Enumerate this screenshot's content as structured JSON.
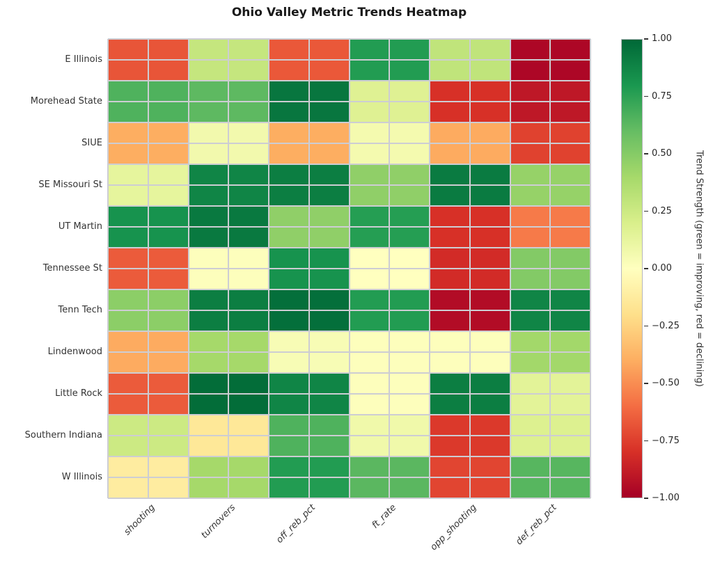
{
  "title": "Ohio Valley Metric Trends Heatmap",
  "chart_data": {
    "type": "heatmap",
    "title": "Ohio Valley Metric Trends Heatmap",
    "rows": [
      "E Illinois",
      "Morehead State",
      "SIUE",
      "SE Missouri St",
      "UT Martin",
      "Tennessee St",
      "Tenn Tech",
      "Lindenwood",
      "Little Rock",
      "Southern Indiana",
      "W Illinois"
    ],
    "columns": [
      "shooting",
      "turnovers",
      "off_reb_pct",
      "ft_rate",
      "opp_shooting",
      "def_reb_pct"
    ],
    "values": [
      [
        -0.68,
        0.28,
        -0.67,
        0.78,
        0.3,
        -0.97
      ],
      [
        0.66,
        0.62,
        0.94,
        0.17,
        -0.8,
        -0.9
      ],
      [
        -0.4,
        0.07,
        -0.4,
        0.06,
        -0.41,
        -0.74
      ],
      [
        0.13,
        0.88,
        0.91,
        0.47,
        0.92,
        0.45
      ],
      [
        0.82,
        0.93,
        0.47,
        0.77,
        -0.8,
        -0.56
      ],
      [
        -0.66,
        0.01,
        0.82,
        0.0,
        -0.82,
        0.51
      ],
      [
        0.48,
        0.91,
        0.97,
        0.78,
        -0.95,
        0.88
      ],
      [
        -0.41,
        0.4,
        0.04,
        0.01,
        0.01,
        0.41
      ],
      [
        -0.66,
        0.98,
        0.88,
        0.01,
        0.91,
        0.15
      ],
      [
        0.25,
        -0.15,
        0.66,
        0.08,
        -0.77,
        0.18
      ],
      [
        -0.12,
        0.4,
        0.78,
        0.63,
        -0.73,
        0.64
      ]
    ],
    "vmin": -1,
    "vmax": 1,
    "grid": true,
    "legend_position": "right",
    "colormap_name": "RdYlGn",
    "colormap_stops": [
      "#a50026",
      "#d73027",
      "#f46d43",
      "#fdae61",
      "#fee08b",
      "#ffffbf",
      "#d9ef8b",
      "#a6d96a",
      "#66bd63",
      "#1a9850",
      "#006837"
    ],
    "colorbar": {
      "label": "Trend Strength (green = improving, red = declining)",
      "tick_labels": [
        "1.00",
        "0.75",
        "0.50",
        "0.25",
        "0.00",
        "−0.25",
        "−0.50",
        "−0.75",
        "−1.00"
      ]
    }
  },
  "colors": {
    "background": "#ffffff",
    "gridline": "#cdcdd3",
    "title_text": "#1a1a1a",
    "tick_text": "#333333",
    "colorbar_border": "#b7b7bd"
  }
}
